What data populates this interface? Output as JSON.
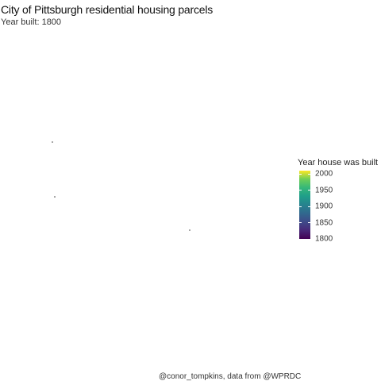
{
  "plot": {
    "title": "City of Pittsburgh residential housing parcels",
    "subtitle": "Year built: 1800",
    "caption": "@conor_tompkins, data from @WPRDC"
  },
  "legend": {
    "title": "Year house was built",
    "breaks": [
      {
        "label": "2000",
        "value": 2000
      },
      {
        "label": "1950",
        "value": 1950
      },
      {
        "label": "1900",
        "value": 1900
      },
      {
        "label": "1850",
        "value": 1850
      },
      {
        "label": "1800",
        "value": 1800
      }
    ],
    "range": [
      1800,
      2010
    ],
    "palette": [
      "#440154",
      "#3e4a89",
      "#26828e",
      "#35b779",
      "#fde725"
    ]
  },
  "chart_data": {
    "type": "scatter",
    "title": "City of Pittsburgh residential housing parcels",
    "subtitle": "Year built: 1800",
    "color_scale": "viridis",
    "legend_title": "Year house was built",
    "legend_placement": "right",
    "grid": false,
    "points": [
      {
        "year_built": 1800
      },
      {
        "year_built": 1800
      },
      {
        "year_built": 1800
      }
    ]
  }
}
